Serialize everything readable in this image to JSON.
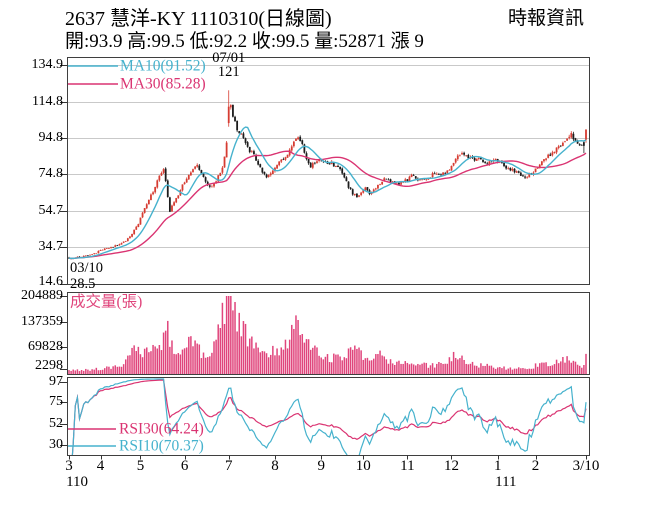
{
  "header": {
    "title": "2637 慧洋-KY 1110310(日線圖)",
    "source": "時報資訊",
    "quote_line": "開:93.9 高:99.5 低:92.2 收:99.5 量:52871 漲 9"
  },
  "colors": {
    "up_candle": "#d63c32",
    "down_candle": "#1c1c1c",
    "ma10": "#46b2cd",
    "ma30": "#da3472",
    "rsi10": "#46b2cd",
    "rsi30": "#da3472",
    "volume": "#e0457c",
    "grid": "#c9c9c9",
    "frame": "#3f3f3f",
    "text": "#000000"
  },
  "x_axis": {
    "months": [
      {
        "label": "3",
        "day": 0
      },
      {
        "label": "4",
        "day": 15
      },
      {
        "label": "5",
        "day": 34
      },
      {
        "label": "6",
        "day": 55
      },
      {
        "label": "7",
        "day": 76
      },
      {
        "label": "8",
        "day": 98
      },
      {
        "label": "9",
        "day": 120
      },
      {
        "label": "10",
        "day": 140
      },
      {
        "label": "11",
        "day": 161
      },
      {
        "label": "12",
        "day": 182
      },
      {
        "label": "1",
        "day": 204
      },
      {
        "label": "2",
        "day": 222
      },
      {
        "label": "3/10",
        "day": 246
      }
    ],
    "years": [
      {
        "label": "110",
        "day": 1
      },
      {
        "label": "111",
        "day": 205
      }
    ]
  },
  "chart_data": [
    {
      "type": "candlestick",
      "panel": "price",
      "y_ticks": [
        "134.9",
        "114.8",
        "94.8",
        "74.8",
        "54.7",
        "34.7",
        "14.6"
      ],
      "y_range": [
        14.6,
        134.9
      ],
      "legend": [
        {
          "label": "MA10(91.52)",
          "color_key": "ma10",
          "period": 10
        },
        {
          "label": "MA30(85.28)",
          "color_key": "ma30",
          "period": 30
        }
      ],
      "annotations": {
        "peak_date": {
          "text": "07/01",
          "day": 76
        },
        "peak_price": {
          "text": "121",
          "day": 76
        },
        "start_date": {
          "text": "03/10",
          "day": 0
        },
        "start_price": {
          "text": "28.5",
          "day": 0
        }
      },
      "days": 247,
      "seed": 20220310,
      "noise": 0.012,
      "close_anchors": [
        [
          0,
          28.5
        ],
        [
          4,
          29.2
        ],
        [
          8,
          30
        ],
        [
          12,
          31.5
        ],
        [
          15,
          33
        ],
        [
          18,
          34
        ],
        [
          21,
          35
        ],
        [
          24,
          36.5
        ],
        [
          27,
          38.5
        ],
        [
          30,
          42
        ],
        [
          33,
          48
        ],
        [
          36,
          56
        ],
        [
          39,
          63
        ],
        [
          41,
          68
        ],
        [
          43,
          74
        ],
        [
          45,
          77.5
        ],
        [
          46,
          72
        ],
        [
          47,
          63
        ],
        [
          48,
          54
        ],
        [
          49,
          58
        ],
        [
          51,
          62
        ],
        [
          53,
          66
        ],
        [
          55,
          71
        ],
        [
          57,
          75
        ],
        [
          59,
          78
        ],
        [
          61,
          80
        ],
        [
          63,
          75
        ],
        [
          65,
          70.5
        ],
        [
          67,
          67.5
        ],
        [
          69,
          70
        ],
        [
          71,
          73.5
        ],
        [
          73,
          79
        ],
        [
          75,
          92
        ],
        [
          76,
          112
        ],
        [
          77,
          113
        ],
        [
          78,
          106
        ],
        [
          80,
          100
        ],
        [
          82,
          96
        ],
        [
          84,
          92
        ],
        [
          86,
          88
        ],
        [
          88,
          85
        ],
        [
          90,
          80
        ],
        [
          92,
          76.5
        ],
        [
          94,
          74
        ],
        [
          96,
          76
        ],
        [
          98,
          79
        ],
        [
          100,
          81
        ],
        [
          102,
          83.5
        ],
        [
          104,
          86
        ],
        [
          106,
          90
        ],
        [
          108,
          94
        ],
        [
          109,
          96
        ],
        [
          111,
          91
        ],
        [
          113,
          83
        ],
        [
          115,
          79
        ],
        [
          117,
          81
        ],
        [
          119,
          83.5
        ],
        [
          121,
          82
        ],
        [
          123,
          80.5
        ],
        [
          125,
          81
        ],
        [
          127,
          79
        ],
        [
          129,
          77
        ],
        [
          131,
          74
        ],
        [
          133,
          68
        ],
        [
          135,
          64.5
        ],
        [
          137,
          62.5
        ],
        [
          139,
          65
        ],
        [
          141,
          67
        ],
        [
          143,
          64.5
        ],
        [
          145,
          66.5
        ],
        [
          147,
          69
        ],
        [
          149,
          71
        ],
        [
          151,
          73
        ],
        [
          153,
          71
        ],
        [
          155,
          69.5
        ],
        [
          157,
          70
        ],
        [
          159,
          71
        ],
        [
          161,
          72
        ],
        [
          163,
          74
        ],
        [
          165,
          73
        ],
        [
          167,
          71.5
        ],
        [
          169,
          72
        ],
        [
          171,
          73
        ],
        [
          173,
          75
        ],
        [
          175,
          76
        ],
        [
          177,
          74.5
        ],
        [
          179,
          75.5
        ],
        [
          181,
          78
        ],
        [
          183,
          82
        ],
        [
          185,
          85.5
        ],
        [
          187,
          86.5
        ],
        [
          189,
          85
        ],
        [
          191,
          83.5
        ],
        [
          193,
          82.5
        ],
        [
          195,
          83
        ],
        [
          197,
          82
        ],
        [
          199,
          81
        ],
        [
          201,
          82
        ],
        [
          203,
          83
        ],
        [
          205,
          81.5
        ],
        [
          207,
          79.5
        ],
        [
          209,
          78
        ],
        [
          211,
          77
        ],
        [
          213,
          76
        ],
        [
          215,
          74.5
        ],
        [
          217,
          73.5
        ],
        [
          219,
          74.5
        ],
        [
          221,
          76.5
        ],
        [
          223,
          79
        ],
        [
          225,
          82
        ],
        [
          227,
          84
        ],
        [
          229,
          86
        ],
        [
          231,
          88
        ],
        [
          233,
          90
        ],
        [
          235,
          93
        ],
        [
          237,
          95
        ],
        [
          239,
          97
        ],
        [
          241,
          93.5
        ],
        [
          243,
          91.5
        ],
        [
          245,
          90.5
        ],
        [
          246,
          99.5
        ]
      ],
      "ohlc_overrides": {
        "0": {
          "o": 29,
          "h": 29.5,
          "l": 28.5,
          "c": 28.8
        },
        "76": {
          "o": 103,
          "h": 121,
          "l": 101,
          "c": 112
        },
        "245": {
          "o": 92.5,
          "h": 93.5,
          "l": 86.5,
          "c": 90.5
        },
        "246": {
          "o": 93.9,
          "h": 99.5,
          "l": 92.2,
          "c": 99.5
        }
      }
    },
    {
      "type": "bar",
      "panel": "volume",
      "label": "成交量(張)",
      "y_ticks": [
        "204889",
        "137359",
        "69828",
        "2298"
      ],
      "y_max": 204889,
      "y_min": 2298,
      "last_value": 52871,
      "anchors": [
        [
          0,
          9000
        ],
        [
          8,
          11000
        ],
        [
          16,
          14000
        ],
        [
          24,
          20000
        ],
        [
          29,
          55000
        ],
        [
          31,
          70000
        ],
        [
          34,
          62000
        ],
        [
          38,
          52000
        ],
        [
          42,
          72000
        ],
        [
          45,
          95000
        ],
        [
          47,
          115000
        ],
        [
          49,
          80000
        ],
        [
          52,
          62000
        ],
        [
          55,
          72000
        ],
        [
          58,
          82000
        ],
        [
          61,
          70000
        ],
        [
          64,
          52000
        ],
        [
          67,
          46000
        ],
        [
          70,
          85000
        ],
        [
          73,
          150000
        ],
        [
          75,
          190000
        ],
        [
          76,
          204889
        ],
        [
          77,
          195000
        ],
        [
          78,
          185000
        ],
        [
          80,
          150000
        ],
        [
          83,
          118000
        ],
        [
          86,
          92000
        ],
        [
          90,
          72000
        ],
        [
          94,
          60000
        ],
        [
          98,
          56000
        ],
        [
          102,
          66000
        ],
        [
          105,
          88000
        ],
        [
          108,
          125000
        ],
        [
          110,
          135000
        ],
        [
          113,
          88000
        ],
        [
          116,
          62000
        ],
        [
          120,
          50000
        ],
        [
          124,
          44000
        ],
        [
          128,
          40000
        ],
        [
          131,
          52000
        ],
        [
          134,
          68000
        ],
        [
          137,
          58000
        ],
        [
          140,
          46000
        ],
        [
          144,
          40000
        ],
        [
          148,
          50000
        ],
        [
          152,
          38000
        ],
        [
          156,
          30000
        ],
        [
          160,
          27000
        ],
        [
          164,
          29000
        ],
        [
          168,
          24000
        ],
        [
          172,
          21000
        ],
        [
          176,
          26000
        ],
        [
          180,
          28000
        ],
        [
          183,
          46000
        ],
        [
          186,
          50000
        ],
        [
          189,
          36000
        ],
        [
          193,
          26000
        ],
        [
          197,
          21000
        ],
        [
          201,
          20000
        ],
        [
          205,
          17000
        ],
        [
          209,
          15000
        ],
        [
          213,
          14000
        ],
        [
          217,
          13000
        ],
        [
          221,
          20000
        ],
        [
          225,
          26000
        ],
        [
          229,
          30000
        ],
        [
          233,
          34000
        ],
        [
          237,
          37000
        ],
        [
          240,
          30000
        ],
        [
          243,
          24000
        ],
        [
          245,
          20000
        ],
        [
          246,
          52871
        ]
      ],
      "overrides": {
        "76": 204889,
        "246": 52871
      }
    },
    {
      "type": "line",
      "panel": "rsi",
      "y_ticks": [
        "97",
        "75",
        "52",
        "30"
      ],
      "y_range": [
        19,
        102
      ],
      "legend": [
        {
          "label": "RSI30(64.24)",
          "color_key": "rsi30",
          "period": 30
        },
        {
          "label": "RSI10(70.37)",
          "color_key": "rsi10",
          "period": 10
        }
      ]
    }
  ]
}
